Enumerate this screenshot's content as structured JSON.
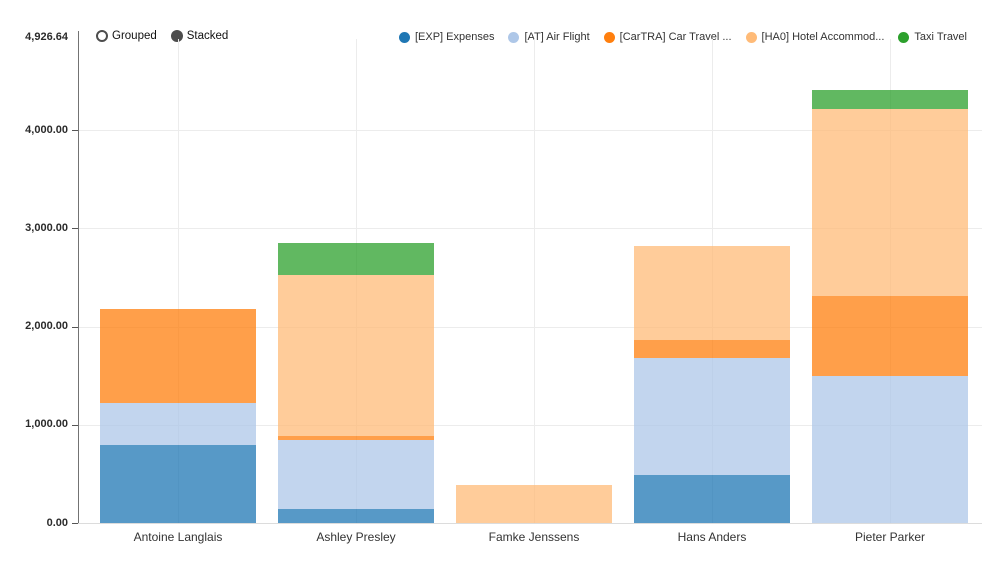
{
  "page": {
    "background": "#ffffff"
  },
  "controls": {
    "grouped_label": "Grouped",
    "stacked_label": "Stacked",
    "selected": "Stacked"
  },
  "axis": {
    "max_label": "4,926.64",
    "y_ticks": [
      {
        "label": "0.00",
        "value": 0
      },
      {
        "label": "1,000.00",
        "value": 1000
      },
      {
        "label": "2,000.00",
        "value": 2000
      },
      {
        "label": "3,000.00",
        "value": 3000
      },
      {
        "label": "4,000.00",
        "value": 4000
      }
    ]
  },
  "chart_data": {
    "type": "bar",
    "stacked": true,
    "orientation": "vertical",
    "categories": [
      "Antoine Langlais",
      "Ashley Presley",
      "Famke Jenssens",
      "Hans Anders",
      "Pieter Parker"
    ],
    "series": [
      {
        "name": "[EXP] Expenses",
        "color": "#1f77b4",
        "values": [
          790,
          145,
          0,
          485,
          0
        ]
      },
      {
        "name": "[AT] Air Flight",
        "color": "#aec7e8",
        "values": [
          430,
          700,
          0,
          1190,
          1500
        ]
      },
      {
        "name": "[CarTRA] Car Travel ...",
        "color": "#ff7f0e",
        "values": [
          955,
          45,
          0,
          185,
          815
        ]
      },
      {
        "name": "[HA0] Hotel Accommod...",
        "color": "#ffbb78",
        "values": [
          0,
          1630,
          390,
          955,
          1895
        ]
      },
      {
        "name": "Taxi Travel",
        "color": "#2ca02c",
        "values": [
          0,
          330,
          0,
          0,
          195
        ]
      }
    ],
    "ylim": [
      0,
      4926.64
    ],
    "bar_opacity": 0.75,
    "grid": true,
    "legend_position": "top-right"
  }
}
